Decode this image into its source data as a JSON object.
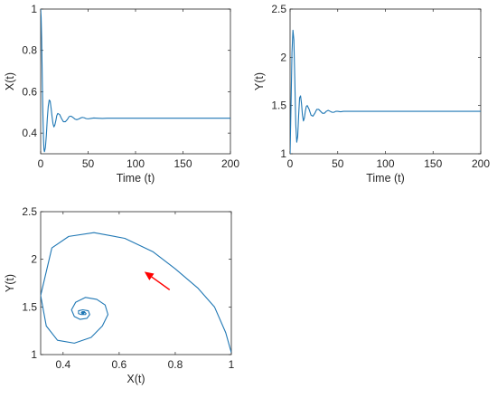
{
  "chart_data": [
    {
      "type": "line",
      "xlabel": "Time (t)",
      "ylabel": "X(t)",
      "xlim": [
        0,
        200
      ],
      "ylim": [
        0.3,
        1.0
      ],
      "xticks": [
        0,
        50,
        100,
        150,
        200
      ],
      "yticks": [
        0.4,
        0.6,
        0.8,
        1.0
      ],
      "xticklabels": [
        "0",
        "50",
        "100",
        "150",
        "200"
      ],
      "yticklabels": [
        "0.4",
        "0.6",
        "0.8",
        "1"
      ],
      "color": "#1f77b4",
      "series": [
        {
          "x": [
            0,
            0.5,
            1,
            1.5,
            2,
            2.5,
            3,
            3.5,
            4,
            5,
            6,
            7,
            8,
            9,
            10,
            11,
            12,
            13,
            14,
            15,
            16,
            17,
            18,
            20,
            22,
            24,
            26,
            28,
            30,
            32,
            34,
            36,
            38,
            40,
            42,
            44,
            46,
            48,
            50,
            53,
            56,
            60,
            65,
            70,
            80,
            100,
            150,
            200
          ],
          "y": [
            1.0,
            0.96,
            0.86,
            0.72,
            0.58,
            0.46,
            0.37,
            0.32,
            0.31,
            0.33,
            0.39,
            0.47,
            0.53,
            0.56,
            0.555,
            0.52,
            0.48,
            0.445,
            0.43,
            0.44,
            0.46,
            0.485,
            0.495,
            0.49,
            0.47,
            0.455,
            0.455,
            0.465,
            0.48,
            0.482,
            0.476,
            0.468,
            0.465,
            0.468,
            0.473,
            0.476,
            0.474,
            0.47,
            0.469,
            0.471,
            0.473,
            0.472,
            0.471,
            0.472,
            0.472,
            0.472,
            0.472,
            0.472
          ]
        }
      ]
    },
    {
      "type": "line",
      "xlabel": "Time (t)",
      "ylabel": "Y(t)",
      "xlim": [
        0,
        200
      ],
      "ylim": [
        1.0,
        2.5
      ],
      "xticks": [
        0,
        50,
        100,
        150,
        200
      ],
      "yticks": [
        1.0,
        1.5,
        2.0,
        2.5
      ],
      "xticklabels": [
        "0",
        "50",
        "100",
        "150",
        "200"
      ],
      "yticklabels": [
        "1",
        "1.5",
        "2",
        "2.5"
      ],
      "color": "#1f77b4",
      "series": [
        {
          "x": [
            0,
            1,
            2,
            3,
            4,
            5,
            6,
            7,
            8,
            9,
            10,
            11,
            12,
            13,
            14,
            15,
            16,
            17,
            18,
            20,
            22,
            24,
            26,
            28,
            30,
            32,
            34,
            36,
            38,
            40,
            42,
            44,
            46,
            48,
            50,
            53,
            56,
            60,
            65,
            70,
            80,
            100,
            150,
            200
          ],
          "y": [
            1.0,
            1.5,
            2.05,
            2.28,
            2.18,
            1.75,
            1.3,
            1.12,
            1.18,
            1.4,
            1.58,
            1.6,
            1.52,
            1.4,
            1.34,
            1.37,
            1.44,
            1.49,
            1.5,
            1.46,
            1.4,
            1.39,
            1.42,
            1.46,
            1.46,
            1.44,
            1.42,
            1.42,
            1.44,
            1.45,
            1.44,
            1.43,
            1.43,
            1.44,
            1.44,
            1.435,
            1.44,
            1.44,
            1.44,
            1.44,
            1.44,
            1.44,
            1.44,
            1.44
          ]
        }
      ]
    },
    {
      "type": "line",
      "xlabel": "X(t)",
      "ylabel": "Y(t)",
      "xlim": [
        0.32,
        1.0
      ],
      "ylim": [
        1.0,
        2.5
      ],
      "xticks": [
        0.4,
        0.6,
        0.8,
        1.0
      ],
      "yticks": [
        1.0,
        1.5,
        2.0,
        2.5
      ],
      "xticklabels": [
        "0.4",
        "0.6",
        "0.8",
        "1"
      ],
      "yticklabels": [
        "1",
        "1.5",
        "2",
        "2.5"
      ],
      "color": "#1f77b4",
      "arrow": {
        "from": [
          0.78,
          1.68
        ],
        "to": [
          0.69,
          1.87
        ],
        "color": "#ff0000"
      },
      "series": [
        {
          "x": [
            1.0,
            0.98,
            0.94,
            0.88,
            0.8,
            0.72,
            0.62,
            0.51,
            0.42,
            0.36,
            0.32,
            0.34,
            0.38,
            0.44,
            0.5,
            0.54,
            0.56,
            0.55,
            0.52,
            0.48,
            0.445,
            0.43,
            0.44,
            0.46,
            0.485,
            0.495,
            0.49,
            0.47,
            0.455,
            0.455,
            0.465,
            0.48,
            0.482,
            0.476,
            0.468,
            0.465,
            0.468,
            0.473,
            0.476,
            0.474,
            0.47,
            0.469,
            0.471,
            0.473,
            0.472
          ],
          "y": [
            1.02,
            1.23,
            1.5,
            1.7,
            1.9,
            2.08,
            2.22,
            2.28,
            2.24,
            2.12,
            1.62,
            1.3,
            1.15,
            1.12,
            1.18,
            1.3,
            1.42,
            1.52,
            1.58,
            1.6,
            1.55,
            1.47,
            1.4,
            1.37,
            1.38,
            1.42,
            1.46,
            1.47,
            1.46,
            1.43,
            1.42,
            1.42,
            1.43,
            1.45,
            1.45,
            1.44,
            1.43,
            1.43,
            1.44,
            1.445,
            1.445,
            1.44,
            1.437,
            1.44,
            1.44
          ]
        }
      ]
    }
  ]
}
